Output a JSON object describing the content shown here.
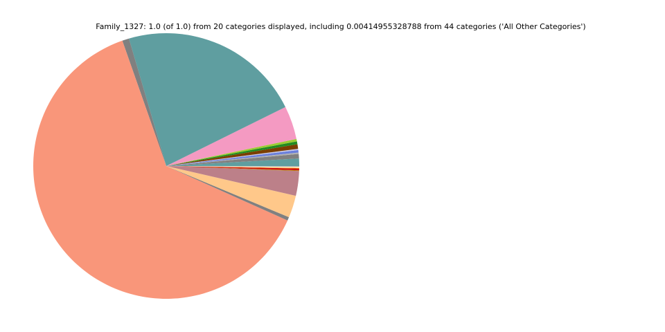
{
  "chart_data": {
    "type": "pie",
    "title": "Family_1327: 1.0 (of 1.0) from 20 categories displayed, including 0.00414955328788 from 44 categories ('All Other Categories')",
    "categories": [
      null,
      null,
      null,
      null,
      null,
      null,
      null,
      null,
      null,
      null,
      null,
      null,
      null,
      null,
      null,
      null,
      null,
      null,
      null,
      null
    ],
    "values": [
      0.009,
      0.0055,
      0.0017,
      0.003,
      0.0015,
      0.0055,
      0.0035,
      0.003,
      0.0405,
      0.222,
      0.0083,
      0.629,
      0.0042,
      0.027,
      0.03,
      0.0008,
      0.0022,
      0.0008,
      0.0014,
      0.0008
    ],
    "colors": [
      "#5f9ea0",
      "#808080",
      "#b0b0b0",
      "#6a7fdb",
      "#c8c8e8",
      "#7b3f00",
      "#228b22",
      "#9acd32",
      "#f49ac2",
      "#5f9ea0",
      "#808080",
      "#f9967a",
      "#808080",
      "#ffc88a",
      "#bc8089",
      "#b8860b",
      "#cc1111",
      "#ff8c00",
      "#f5f5dc",
      "#a0a0a0"
    ]
  }
}
